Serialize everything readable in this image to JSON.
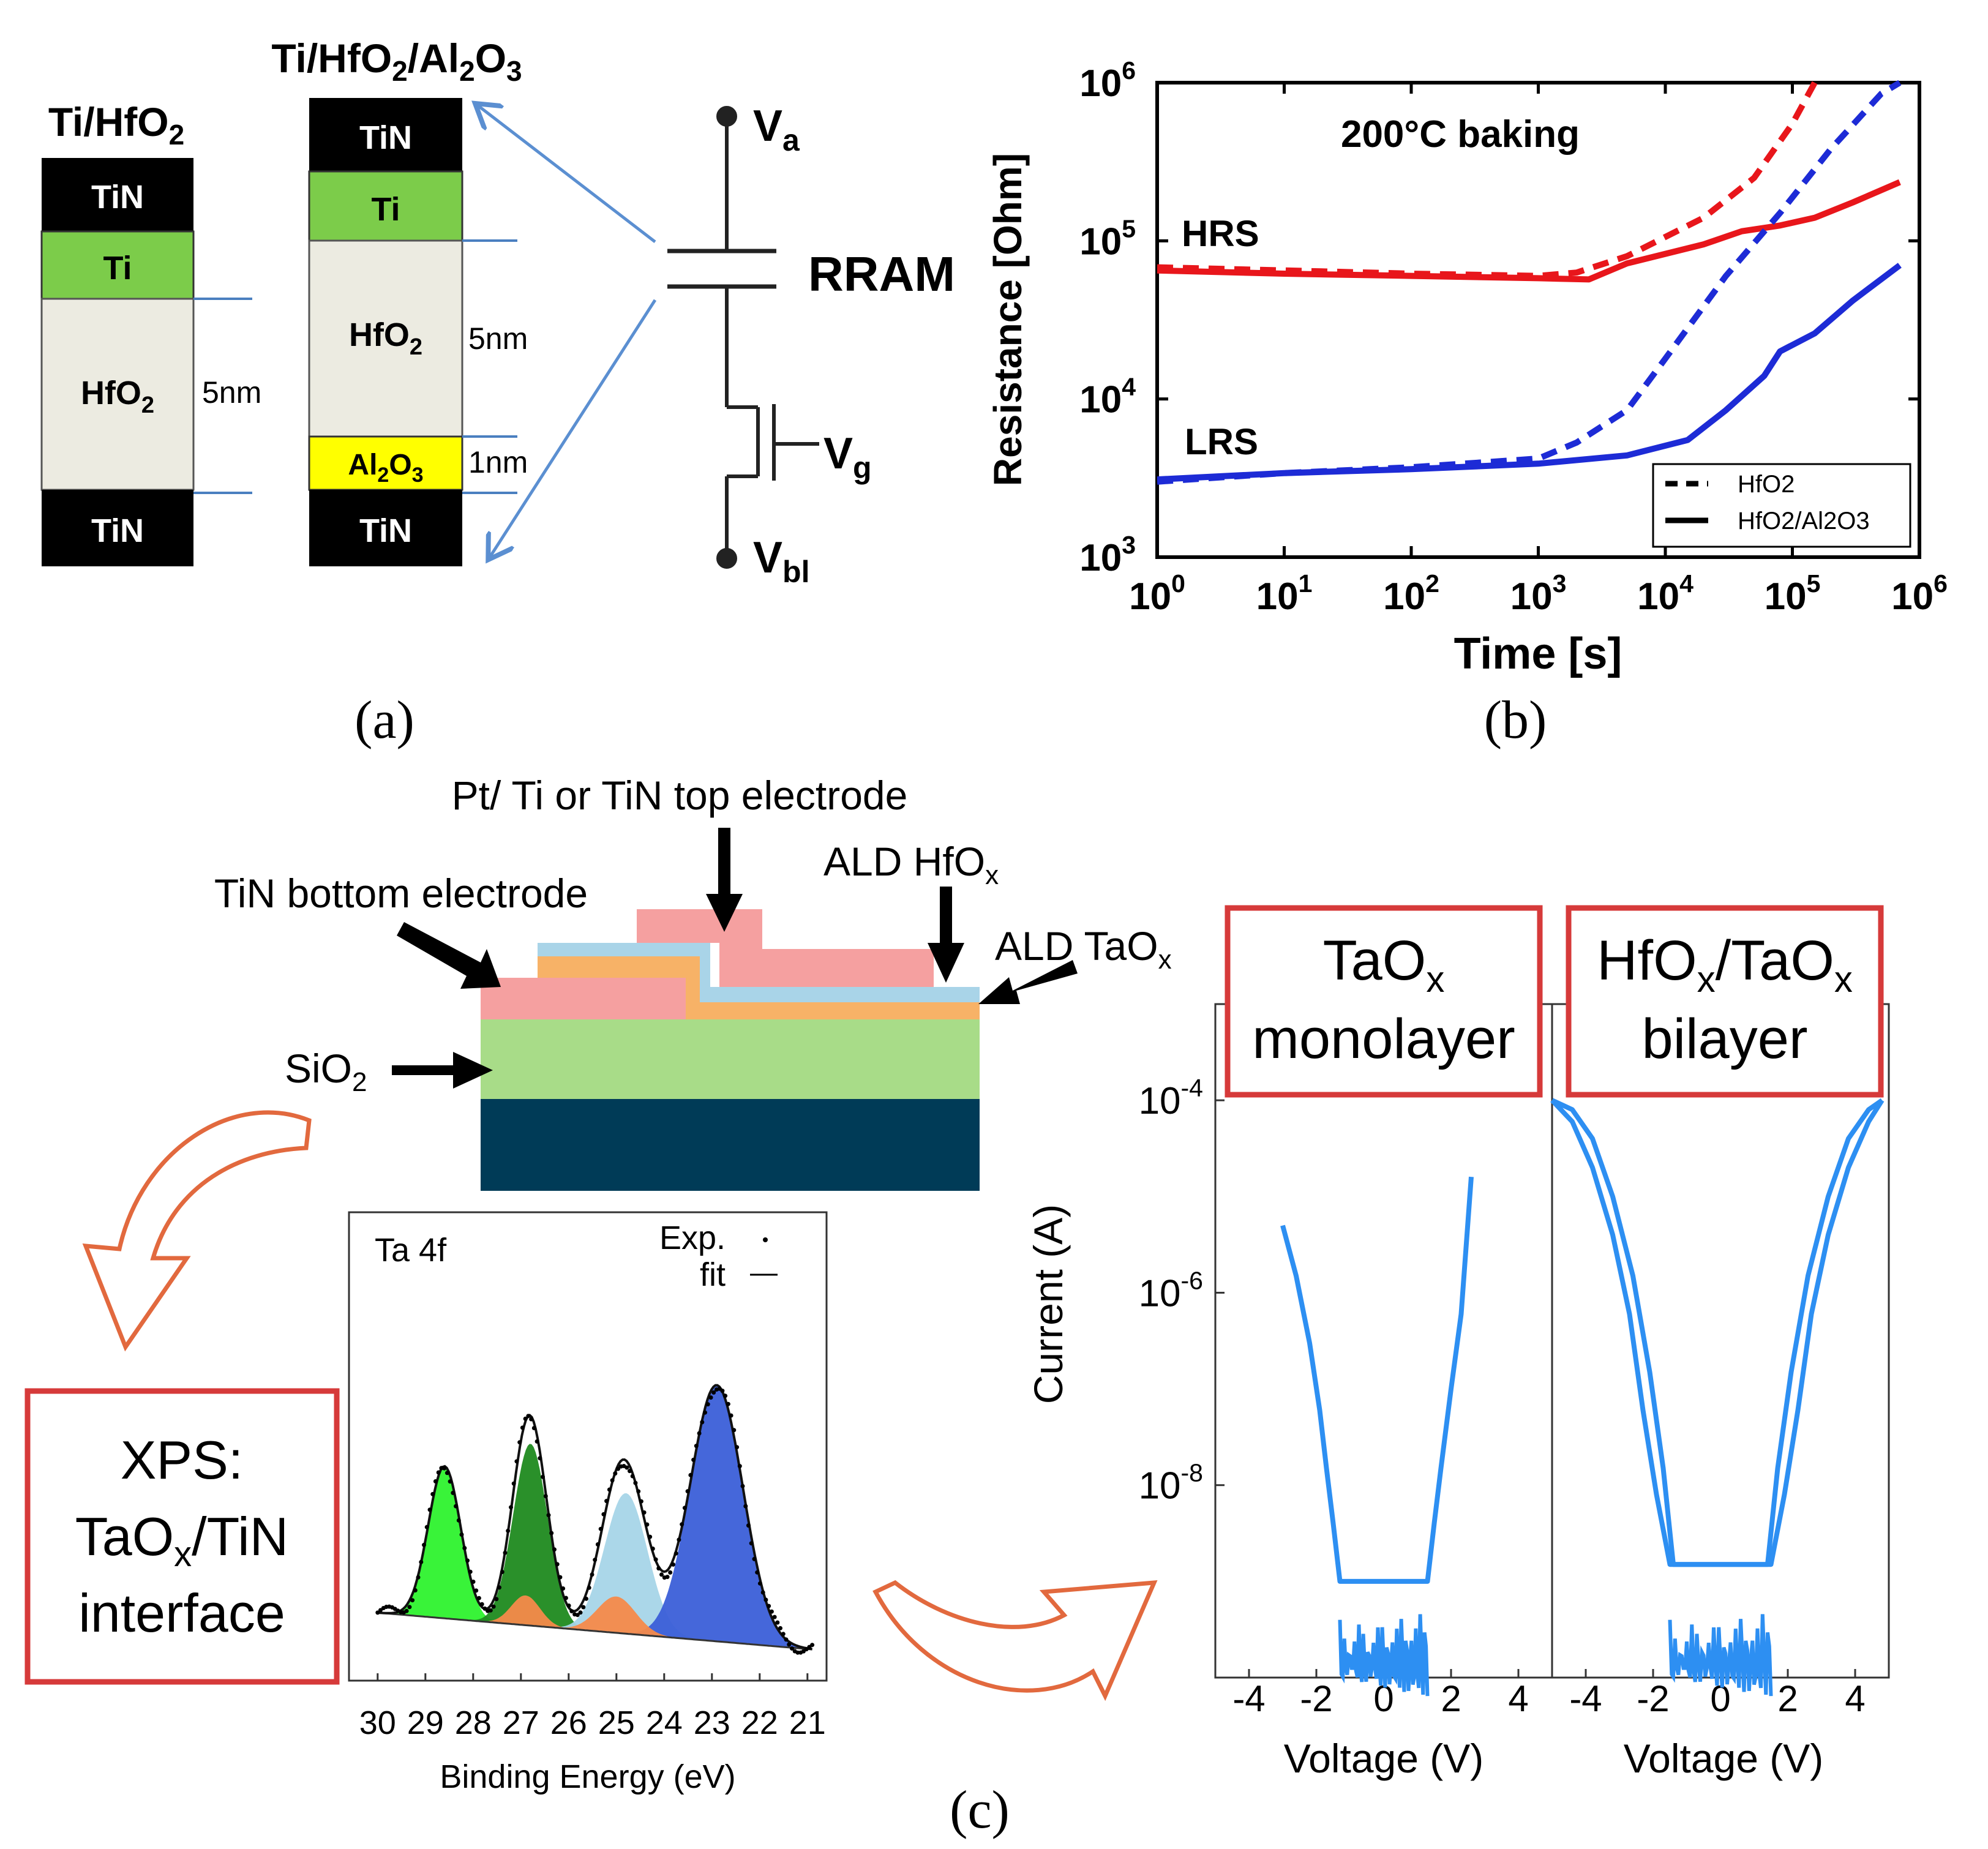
{
  "colors": {
    "tin": "#000000",
    "ti": "#7ccc4a",
    "hfo2": "#ecebe1",
    "al2o3": "#ffff00",
    "hrs": "#e8161b",
    "lrs": "#1d2bd6",
    "arrow_blue": "#5b8fd1",
    "cell_pink": "#f5a0a0",
    "hfox_blue": "#a9d4e8",
    "taox_orange": "#f7b267",
    "sio2_green": "#a8dc88",
    "substrate": "#003b57",
    "curly_orange": "#e2693e",
    "box_red": "#d63a3a",
    "iv_blue": "#2d8ff2",
    "peak_lime": "#2ef22e",
    "peak_green": "#1f8a1f",
    "peak_lightblue": "#a6d5e8",
    "peak_royal": "#3b5fd8",
    "peak_orange": "#f58a4a"
  },
  "panel_a": {
    "caption": "(a)",
    "stack1": {
      "title_main": "Ti/HfO",
      "title_sub": "2",
      "tin_top": "TiN",
      "ti": "Ti",
      "hfo2_main": "HfO",
      "hfo2_sub": "2",
      "thickness": "5nm",
      "tin_bottom": "TiN"
    },
    "stack2": {
      "title_main1": "Ti/HfO",
      "title_sub1": "2",
      "title_mid": "/Al",
      "title_sub2": "2",
      "title_end": "O",
      "title_sub3": "3",
      "tin_top": "TiN",
      "ti": "Ti",
      "hfo2_main": "HfO",
      "hfo2_sub": "2",
      "thickness_hfo2": "5nm",
      "al2o3_a": "Al",
      "al2o3_s1": "2",
      "al2o3_b": "O",
      "al2o3_s2": "3",
      "thickness_al2o3": "1nm",
      "tin_bottom": "TiN"
    },
    "circuit": {
      "va_main": "V",
      "va_sub": "a",
      "rram": "RRAM",
      "vg_main": "V",
      "vg_sub": "g",
      "vbl_main": "V",
      "vbl_sub": "bl"
    }
  },
  "panel_b_caption": "(b)",
  "panel_c": {
    "caption": "(c)",
    "labels": {
      "top_electrode": "Pt/ Ti or TiN top electrode",
      "bottom_electrode": "TiN bottom electrode",
      "hfox_main": "ALD HfO",
      "hfox_sub": "x",
      "taox_main": "ALD TaO",
      "taox_sub": "x",
      "sio2_main": "SiO",
      "sio2_sub": "2"
    },
    "xps_box": {
      "line1": "XPS:",
      "line2_main": "TaO",
      "line2_sub": "x",
      "line2_end": "/TiN",
      "line3": "interface"
    },
    "mono_box": {
      "line1_main": "TaO",
      "line1_sub": "x",
      "line2": "monolayer"
    },
    "bi_box": {
      "line1_a": "HfO",
      "line1_s1": "x",
      "line1_b": "/TaO",
      "line1_s2": "x",
      "line2": "bilayer"
    }
  },
  "chart_data": [
    {
      "type": "line",
      "title": "200°C baking",
      "xlabel": "Time [s]",
      "ylabel": "Resistance [Ohm]",
      "xscale": "log",
      "yscale": "log",
      "xlim": [
        1,
        1000000
      ],
      "ylim": [
        1000,
        1000000
      ],
      "x_ticks": [
        {
          "value": 1,
          "base": "10",
          "exp": "0"
        },
        {
          "value": 10,
          "base": "10",
          "exp": "1"
        },
        {
          "value": 100,
          "base": "10",
          "exp": "2"
        },
        {
          "value": 1000,
          "base": "10",
          "exp": "3"
        },
        {
          "value": 10000,
          "base": "10",
          "exp": "4"
        },
        {
          "value": 100000,
          "base": "10",
          "exp": "5"
        },
        {
          "value": 1000000,
          "base": "10",
          "exp": "6"
        }
      ],
      "y_ticks": [
        {
          "value": 1000,
          "base": "10",
          "exp": "3"
        },
        {
          "value": 10000,
          "base": "10",
          "exp": "4"
        },
        {
          "value": 100000,
          "base": "10",
          "exp": "5"
        },
        {
          "value": 1000000,
          "base": "10",
          "exp": "6"
        }
      ],
      "annotations": [
        "HRS",
        "LRS"
      ],
      "legend_position": "bottom-right",
      "legend": [
        {
          "label": "HfO2",
          "style": "dashed"
        },
        {
          "label": "HfO2/Al2O3",
          "style": "solid"
        }
      ],
      "series": [
        {
          "name": "HRS HfO2",
          "style": "dashed",
          "color": "#e8161b",
          "x": [
            1,
            10,
            100,
            1000,
            2000,
            5000,
            20000,
            50000,
            100000,
            150000
          ],
          "y": [
            68000,
            65000,
            62000,
            60000,
            63000,
            80000,
            140000,
            250000,
            550000,
            1000000
          ]
        },
        {
          "name": "HRS HfO2/Al2O3",
          "style": "solid",
          "color": "#e8161b",
          "x": [
            1,
            10,
            100,
            1000,
            2500,
            5000,
            20000,
            40000,
            80000,
            150000,
            300000,
            700000
          ],
          "y": [
            65000,
            62000,
            60000,
            58000,
            57000,
            72000,
            95000,
            115000,
            125000,
            140000,
            175000,
            235000
          ]
        },
        {
          "name": "LRS HfO2",
          "style": "dashed",
          "color": "#1d2bd6",
          "x": [
            1,
            10,
            100,
            1000,
            2000,
            5000,
            10000,
            30000,
            80000,
            200000,
            500000,
            700000
          ],
          "y": [
            3000,
            3400,
            3700,
            4200,
            5300,
            8500,
            18000,
            60000,
            150000,
            380000,
            850000,
            1000000
          ]
        },
        {
          "name": "LRS HfO2/Al2O3",
          "style": "solid",
          "color": "#1d2bd6",
          "x": [
            1,
            10,
            100,
            1000,
            5000,
            15000,
            30000,
            60000,
            80000,
            150000,
            300000,
            700000
          ],
          "y": [
            3100,
            3400,
            3600,
            3900,
            4400,
            5500,
            8500,
            14000,
            20000,
            26000,
            42000,
            70000
          ]
        }
      ]
    },
    {
      "type": "line",
      "title": "Ta 4f",
      "xlabel": "Binding Energy (eV)",
      "xlim": [
        30,
        21
      ],
      "x_ticks": [
        "30",
        "29",
        "28",
        "27",
        "26",
        "25",
        "24",
        "23",
        "22",
        "21"
      ],
      "legend_position": "top-right",
      "legend": [
        {
          "label": "Exp.",
          "style": "dot"
        },
        {
          "label": "fit",
          "style": "line"
        }
      ],
      "background": {
        "x": [
          30,
          21
        ],
        "y": [
          0.0,
          -0.22
        ]
      },
      "peaks": [
        {
          "name": "peak-lime",
          "center": 28.6,
          "height": 0.92,
          "width": 0.34,
          "color": "#2ef22e"
        },
        {
          "name": "peak-green",
          "center": 26.8,
          "height": 1.1,
          "width": 0.36,
          "color": "#1f8a1f"
        },
        {
          "name": "peak-lightblue",
          "center": 24.8,
          "height": 0.85,
          "width": 0.45,
          "color": "#a6d5e8"
        },
        {
          "name": "peak-royal",
          "center": 22.9,
          "height": 1.55,
          "width": 0.55,
          "color": "#3b5fd8"
        },
        {
          "name": "peak-orange-1",
          "center": 26.9,
          "height": 0.18,
          "width": 0.3,
          "color": "#f58a4a"
        },
        {
          "name": "peak-orange-2",
          "center": 25.0,
          "height": 0.22,
          "width": 0.4,
          "color": "#f58a4a"
        }
      ],
      "fit_y_range": [
        -0.3,
        2.2
      ]
    },
    {
      "type": "line",
      "title": "TaOx monolayer",
      "xlabel": "Voltage (V)",
      "ylabel": "Current (A)",
      "yscale": "log",
      "xlim": [
        -5,
        5
      ],
      "ylim": [
        1e-10,
        0.001
      ],
      "x_ticks": [
        "-4",
        "-2",
        "0",
        "2",
        "4"
      ],
      "y_ticks": [
        {
          "value": 0.0001,
          "base": "10",
          "exp": "-4"
        },
        {
          "value": 1e-06,
          "base": "10",
          "exp": "-6"
        },
        {
          "value": 1e-08,
          "base": "10",
          "exp": "-8"
        }
      ],
      "series": [
        {
          "name": "monolayer-iv",
          "color": "#2d8ff2",
          "x": [
            -3.0,
            -2.6,
            -2.2,
            -1.9,
            -1.7,
            -1.5,
            -1.3,
            1.3,
            1.5,
            1.7,
            2.0,
            2.3,
            2.6
          ],
          "y": [
            5e-06,
            1.5e-06,
            3e-07,
            6e-08,
            1.5e-08,
            4e-09,
            1e-09,
            1e-09,
            4e-09,
            1.5e-08,
            1e-07,
            6e-07,
            1.6e-05
          ]
        }
      ]
    },
    {
      "type": "line",
      "title": "HfOx/TaOx bilayer",
      "xlabel": "Voltage (V)",
      "xlim": [
        -5,
        5
      ],
      "ylim": [
        1e-10,
        0.001
      ],
      "x_ticks": [
        "-4",
        "-2",
        "0",
        "2",
        "4"
      ],
      "series": [
        {
          "name": "bilayer-iv-outer",
          "color": "#2d8ff2",
          "x": [
            -5.0,
            -4.4,
            -3.8,
            -3.2,
            -2.6,
            -2.1,
            -1.7,
            -1.4,
            1.4,
            1.7,
            2.1,
            2.6,
            3.2,
            3.8,
            4.4,
            4.8
          ],
          "y": [
            0.0001,
            8e-05,
            4e-05,
            1e-05,
            1.5e-06,
            1.5e-07,
            1.5e-08,
            1.5e-09,
            1.5e-09,
            1.5e-08,
            1.5e-07,
            1.5e-06,
            1e-05,
            4e-05,
            8e-05,
            0.0001
          ]
        },
        {
          "name": "bilayer-iv-inner",
          "color": "#2d8ff2",
          "x": [
            -5.0,
            -4.4,
            -3.8,
            -3.2,
            -2.7,
            -2.3,
            -1.9,
            -1.5,
            1.5,
            1.9,
            2.3,
            2.7,
            3.2,
            3.8,
            4.4,
            4.8
          ],
          "y": [
            0.0001,
            6e-05,
            2e-05,
            4e-06,
            6e-07,
            6e-08,
            8e-09,
            1.5e-09,
            1.5e-09,
            8e-09,
            6e-08,
            6e-07,
            4e-06,
            2e-05,
            6e-05,
            0.0001
          ]
        }
      ]
    }
  ]
}
